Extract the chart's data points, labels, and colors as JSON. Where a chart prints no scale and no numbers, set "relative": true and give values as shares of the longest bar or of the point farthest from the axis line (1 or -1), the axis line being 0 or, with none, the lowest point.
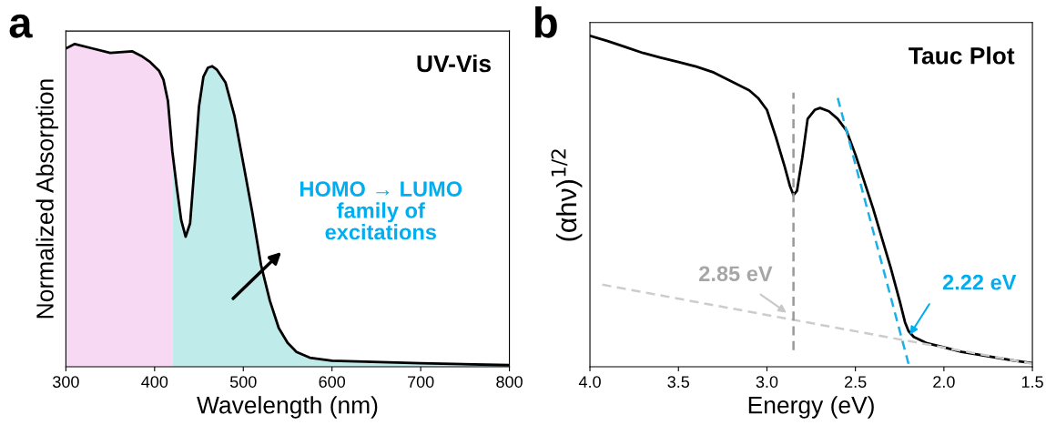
{
  "chart_data": [
    {
      "type": "line",
      "title": "UV-Vis",
      "xlabel": "Wavelength (nm)",
      "ylabel": "Normalized Absorption",
      "relative": true,
      "xlim": [
        300,
        800
      ],
      "xticks": [
        300,
        400,
        500,
        600,
        700,
        800
      ],
      "grid": false,
      "legend": false,
      "annotations": [
        "a",
        "HOMO → LUMO\nfamily of\nexcitations"
      ],
      "series": [
        {
          "type": "area",
          "color": "#f8d9f3",
          "x": [
            300,
            310,
            330,
            350,
            375,
            385,
            395,
            405,
            410,
            415,
            420
          ],
          "values": [
            0.986,
            1.0,
            0.986,
            0.972,
            0.977,
            0.963,
            0.944,
            0.917,
            0.889,
            0.824,
            0.667
          ]
        },
        {
          "type": "area",
          "color": "#bfeceb",
          "x": [
            420,
            425,
            430,
            435,
            440,
            445,
            450,
            455,
            460,
            465,
            470,
            480,
            490,
            500,
            510,
            520,
            530,
            540,
            550,
            560,
            575,
            600,
            700,
            800
          ],
          "values": [
            0.667,
            0.556,
            0.454,
            0.403,
            0.444,
            0.62,
            0.806,
            0.898,
            0.926,
            0.931,
            0.921,
            0.88,
            0.778,
            0.63,
            0.481,
            0.315,
            0.204,
            0.12,
            0.074,
            0.046,
            0.028,
            0.019,
            0.011,
            0.005
          ]
        },
        {
          "color": "#000000",
          "line_style": "solid",
          "x": [
            300,
            310,
            330,
            350,
            375,
            385,
            395,
            405,
            410,
            415,
            420,
            425,
            430,
            435,
            440,
            445,
            450,
            455,
            460,
            465,
            470,
            480,
            490,
            500,
            510,
            520,
            530,
            540,
            550,
            560,
            575,
            600,
            700,
            800
          ],
          "values": [
            0.986,
            1.0,
            0.986,
            0.972,
            0.977,
            0.963,
            0.944,
            0.917,
            0.889,
            0.824,
            0.667,
            0.556,
            0.454,
            0.403,
            0.444,
            0.62,
            0.806,
            0.898,
            0.926,
            0.931,
            0.921,
            0.88,
            0.778,
            0.63,
            0.481,
            0.315,
            0.204,
            0.12,
            0.074,
            0.046,
            0.028,
            0.019,
            0.011,
            0.005
          ]
        }
      ]
    },
    {
      "type": "line",
      "title": "Tauc Plot",
      "xlabel": "Energy (eV)",
      "ylabel": "(αhν)$^{1/2}$",
      "relative": true,
      "xlim": [
        4.0,
        1.5
      ],
      "xticks": [
        {
          "value": 4.0,
          "label": "4.0"
        },
        3.5,
        {
          "value": 3.0,
          "label": "3.0"
        },
        2.5,
        {
          "value": 2.0,
          "label": "2.0"
        },
        1.5
      ],
      "grid": false,
      "legend": false,
      "annotations": [
        "b",
        "2.85 eV",
        "2.22 eV"
      ],
      "series": [
        {
          "color": "#000000",
          "line_style": "solid",
          "x": [
            4.0,
            3.9,
            3.8,
            3.7,
            3.6,
            3.5,
            3.4,
            3.3,
            3.2,
            3.1,
            3.05,
            3.0,
            2.95,
            2.9,
            2.87,
            2.85,
            2.83,
            2.8,
            2.77,
            2.73,
            2.7,
            2.65,
            2.6,
            2.55,
            2.5,
            2.45,
            2.4,
            2.35,
            2.3,
            2.25,
            2.22,
            2.2,
            2.17,
            2.1,
            2.0,
            1.9,
            1.8,
            1.7,
            1.6,
            1.5
          ],
          "values": [
            1.0,
            0.984,
            0.966,
            0.948,
            0.934,
            0.921,
            0.907,
            0.889,
            0.862,
            0.835,
            0.812,
            0.776,
            0.695,
            0.605,
            0.546,
            0.519,
            0.532,
            0.632,
            0.749,
            0.776,
            0.782,
            0.772,
            0.749,
            0.713,
            0.641,
            0.56,
            0.478,
            0.388,
            0.298,
            0.199,
            0.135,
            0.108,
            0.09,
            0.072,
            0.059,
            0.045,
            0.036,
            0.027,
            0.018,
            0.011
          ]
        },
        {
          "color": "#cccccc",
          "line_style": "dashed",
          "x": [
            3.93,
            1.5
          ],
          "values": [
            0.248,
            0.009
          ]
        },
        {
          "color": "#999999",
          "line_style": "dashed",
          "x": [
            2.85,
            2.85
          ],
          "values": [
            0.05,
            0.828
          ]
        },
        {
          "color": "#1ab0e8",
          "line_style": "dashed",
          "x": [
            2.6,
            2.2
          ],
          "values": [
            0.812,
            0.009
          ]
        }
      ]
    }
  ]
}
